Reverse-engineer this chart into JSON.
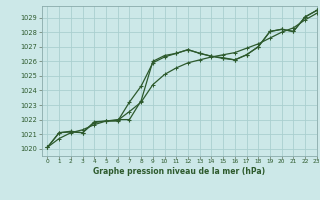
{
  "title": "Graphe pression niveau de la mer (hPa)",
  "background_color": "#cce8e8",
  "grid_color": "#aacfcf",
  "line_color": "#2d5a2d",
  "xlim": [
    -0.5,
    23
  ],
  "ylim": [
    1019.5,
    1029.8
  ],
  "yticks": [
    1020,
    1021,
    1022,
    1023,
    1024,
    1025,
    1026,
    1027,
    1028,
    1029
  ],
  "xticks": [
    0,
    1,
    2,
    3,
    4,
    5,
    6,
    7,
    8,
    9,
    10,
    11,
    12,
    13,
    14,
    15,
    16,
    17,
    18,
    19,
    20,
    21,
    22,
    23
  ],
  "line1_x": [
    0,
    1,
    2,
    3,
    4,
    5,
    6,
    7,
    8,
    9,
    10,
    11,
    12,
    13,
    14,
    15,
    16,
    17,
    18,
    19,
    20,
    21,
    22,
    23
  ],
  "line1_y": [
    1020.1,
    1021.1,
    1021.2,
    1021.1,
    1021.85,
    1021.9,
    1022.0,
    1022.0,
    1023.3,
    1026.0,
    1026.4,
    1026.55,
    1026.8,
    1026.55,
    1026.35,
    1026.25,
    1026.1,
    1026.45,
    1027.0,
    1028.05,
    1028.2,
    1028.05,
    1029.05,
    1029.5
  ],
  "line2_x": [
    0,
    1,
    2,
    3,
    4,
    5,
    6,
    7,
    8,
    9,
    10,
    11,
    12,
    13,
    14,
    15,
    16,
    17,
    18,
    19,
    20,
    21,
    22,
    23
  ],
  "line2_y": [
    1020.1,
    1021.1,
    1021.15,
    1021.1,
    1021.8,
    1021.9,
    1021.9,
    1023.2,
    1024.3,
    1025.9,
    1026.3,
    1026.55,
    1026.8,
    1026.55,
    1026.35,
    1026.2,
    1026.1,
    1026.45,
    1027.0,
    1028.05,
    1028.2,
    1028.05,
    1029.05,
    1029.5
  ],
  "line3_x": [
    0,
    1,
    2,
    3,
    4,
    5,
    6,
    7,
    8,
    9,
    10,
    11,
    12,
    13,
    14,
    15,
    16,
    17,
    18,
    19,
    20,
    21,
    22,
    23
  ],
  "line3_y": [
    1020.1,
    1020.7,
    1021.1,
    1021.3,
    1021.65,
    1021.9,
    1021.95,
    1022.55,
    1023.2,
    1024.4,
    1025.1,
    1025.55,
    1025.9,
    1026.1,
    1026.3,
    1026.45,
    1026.6,
    1026.9,
    1027.2,
    1027.6,
    1028.0,
    1028.3,
    1028.85,
    1029.3
  ]
}
